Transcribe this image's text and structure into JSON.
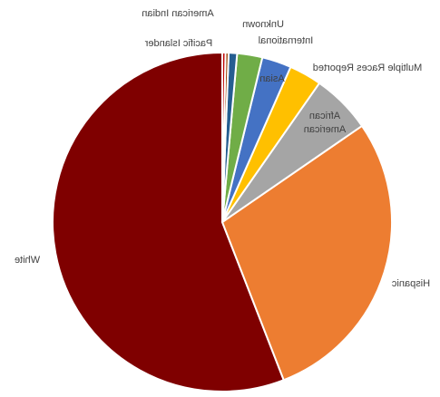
{
  "chart_data": {
    "type": "pie",
    "categories": [
      "White",
      "Hispanic",
      "African American",
      "Multiple Races Reported",
      "Asian",
      "International",
      "Unknown",
      "American Indian",
      "Pacific Islander"
    ],
    "values": [
      55.9,
      28.7,
      5.7,
      3.1,
      2.8,
      2.4,
      0.8,
      0.3,
      0.3
    ],
    "colors": [
      "#7f0000",
      "#ed7d31",
      "#a5a5a5",
      "#ffc000",
      "#4472c4",
      "#70ad47",
      "#255e91",
      "#9e480e",
      "#c00000"
    ]
  }
}
